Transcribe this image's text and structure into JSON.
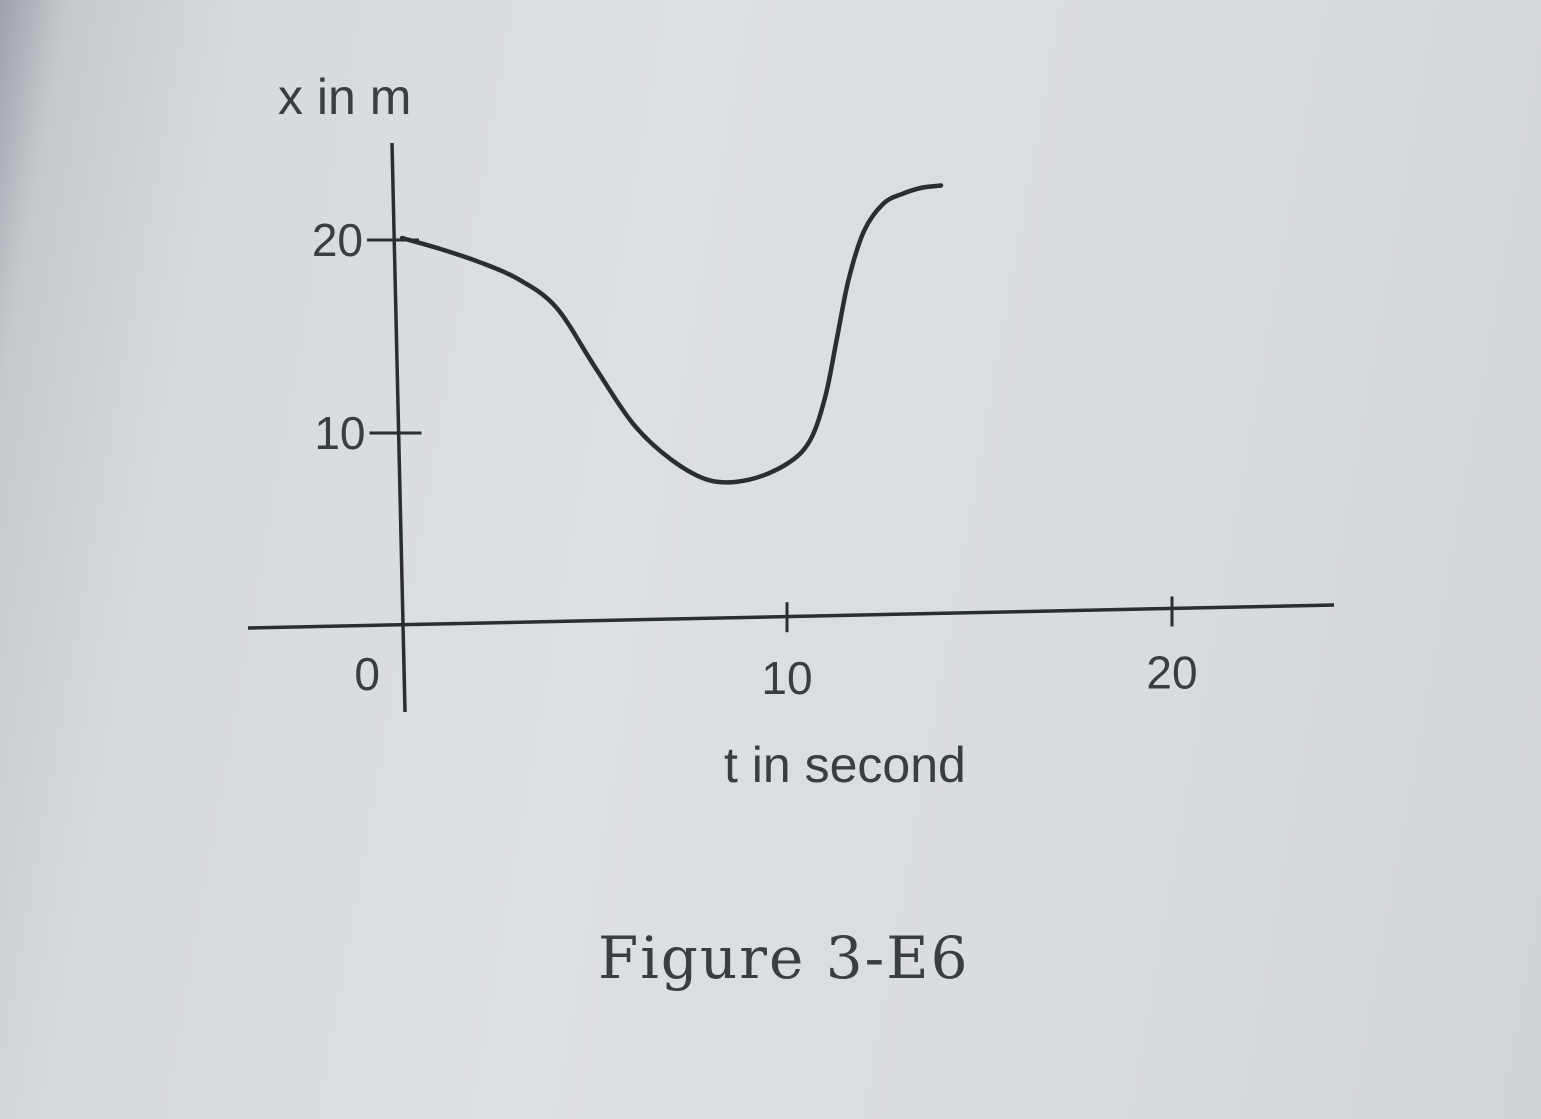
{
  "chart_data": {
    "type": "line",
    "caption": "Figure 3-E6",
    "xlabel": "t in second",
    "ylabel": "x in m",
    "xlim": [
      0,
      25
    ],
    "ylim": [
      0,
      24
    ],
    "xticks": [
      10,
      20
    ],
    "yticks": [
      10,
      20
    ],
    "origin_label": "0",
    "grid": false,
    "series": [
      {
        "x": [
          0,
          1,
          2,
          3,
          4,
          5,
          6,
          7,
          8,
          9,
          10,
          10.6,
          11,
          11.3,
          11.6,
          12,
          12.5,
          13,
          13.5,
          14
        ],
        "y": [
          20,
          19.4,
          18.7,
          17.8,
          16.3,
          13.2,
          10.2,
          8.3,
          7.2,
          7.2,
          8.0,
          9.2,
          11.5,
          14.5,
          17.5,
          20.0,
          21.4,
          21.9,
          22.2,
          22.3
        ]
      }
    ],
    "colors": {
      "ink": "#2b2d30"
    }
  }
}
